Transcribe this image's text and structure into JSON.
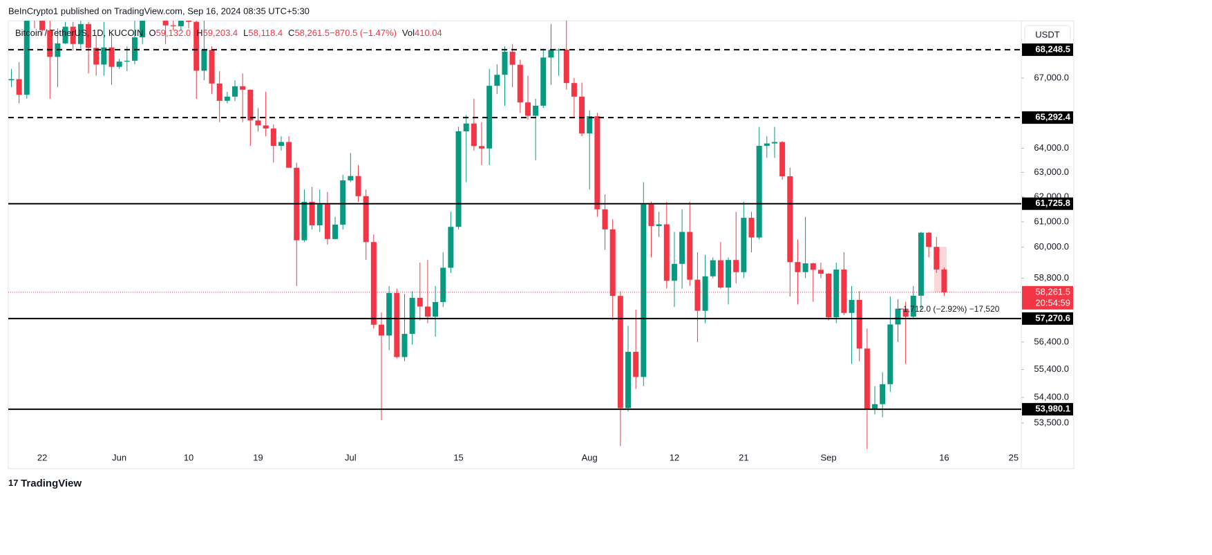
{
  "header": "BeInCrypto1 published on TradingView.com, Sep 16, 2024 08:35 UTC+5:30",
  "footer": "TradingView",
  "chart_data": {
    "type": "candlestick",
    "symbol": "Bitcoin / TetherUS, 1D, KUCOIN",
    "legend_items": [
      {
        "key": "O",
        "value": "59,132.0"
      },
      {
        "key": "H",
        "value": "59,203.4"
      },
      {
        "key": "L",
        "value": "58,118.4"
      },
      {
        "key": "C",
        "value": "58,261.5"
      },
      {
        "key": "",
        "value": "−870.5 (−1.47%)"
      },
      {
        "key": "Vol",
        "value": "410.04"
      }
    ],
    "currency": "USDT",
    "up_color": "#089981",
    "down_color": "#f23645",
    "log_scale": true,
    "categories": [
      null,
      null,
      null,
      null,
      "22",
      null,
      null,
      null,
      null,
      null,
      null,
      null,
      null,
      null,
      "Jun",
      null,
      null,
      null,
      null,
      null,
      null,
      null,
      null,
      "10",
      null,
      null,
      null,
      null,
      null,
      null,
      null,
      null,
      "19",
      null,
      null,
      null,
      null,
      null,
      null,
      null,
      null,
      null,
      null,
      null,
      "Jul",
      null,
      null,
      null,
      null,
      null,
      null,
      null,
      null,
      null,
      null,
      null,
      null,
      null,
      "15",
      null,
      null,
      null,
      null,
      null,
      null,
      null,
      null,
      null,
      null,
      null,
      null,
      null,
      null,
      null,
      null,
      "Aug",
      null,
      null,
      null,
      null,
      null,
      null,
      null,
      null,
      null,
      null,
      "12",
      null,
      null,
      null,
      null,
      null,
      null,
      null,
      null,
      "21",
      null,
      null,
      null,
      null,
      null,
      null,
      null,
      null,
      null,
      null,
      "Sep",
      null,
      null,
      null,
      null,
      null,
      null,
      null,
      null,
      null,
      null,
      null,
      null,
      null,
      null,
      "16",
      null,
      null,
      null,
      null,
      null,
      null,
      null,
      null,
      "25"
    ],
    "open": [
      66900,
      66950,
      66270,
      71440,
      70140,
      69120,
      67930,
      68530,
      69280,
      68500,
      69400,
      68330,
      67590,
      68350,
      67490,
      67720,
      67760,
      68800,
      70570,
      71080,
      70760,
      69340,
      69300,
      69650,
      69500,
      67320,
      68240,
      66760,
      66010,
      66190,
      66640,
      66490,
      65170,
      64960,
      64830,
      64100,
      64260,
      63190,
      60270,
      61800,
      60860,
      61690,
      60320,
      60890,
      62670,
      62850,
      62030,
      60200,
      57040,
      56640,
      58230,
      55850,
      56700,
      58050,
      57720,
      57340,
      57890,
      59200,
      60800,
      64710,
      65040,
      64090,
      63990,
      66660,
      67140,
      68160,
      67580,
      65940,
      65370,
      65800,
      67900,
      68240,
      68250,
      66780,
      66190,
      64620,
      65350,
      61500,
      60700,
      58120,
      54020,
      56040,
      55130,
      61690,
      60830,
      60900,
      58700,
      59350,
      60600,
      58740,
      57560,
      58870,
      59490,
      58440,
      59500,
      59030,
      61160,
      60380,
      64100,
      64200,
      64260,
      62840,
      59420,
      59030,
      59370,
      59120,
      58970,
      57320,
      59130,
      57480,
      57970,
      56160,
      53960,
      54160,
      54870,
      57050,
      57640,
      57340,
      58130,
      60570,
      60010,
      59132,
      null,
      null,
      null,
      null,
      null,
      null,
      null,
      null,
      null
    ],
    "high": [
      67400,
      67700,
      71500,
      71900,
      70600,
      70000,
      69200,
      69500,
      69500,
      70600,
      69500,
      68900,
      69500,
      69000,
      67850,
      68400,
      70200,
      71000,
      71700,
      71600,
      71900,
      69600,
      69900,
      70100,
      69600,
      69900,
      68400,
      67300,
      66400,
      66900,
      67200,
      66500,
      65700,
      66400,
      65000,
      64500,
      64500,
      63400,
      62300,
      62400,
      62300,
      62200,
      61200,
      62900,
      63800,
      63300,
      62300,
      60500,
      57500,
      58500,
      58400,
      58200,
      58300,
      59400,
      59500,
      58500,
      59800,
      61400,
      64900,
      65400,
      66100,
      65100,
      67400,
      67600,
      68400,
      68500,
      67800,
      67100,
      66100,
      68300,
      69400,
      68300,
      70000,
      67000,
      66800,
      65600,
      65500,
      62100,
      61100,
      58300,
      57000,
      57600,
      62600,
      61800,
      61400,
      61800,
      60600,
      61500,
      61800,
      59800,
      59700,
      59600,
      60200,
      59600,
      61400,
      61800,
      61400,
      64900,
      64500,
      64900,
      64300,
      63200,
      60300,
      61200,
      59400,
      59400,
      59000,
      59400,
      59800,
      58500,
      58300,
      56900,
      54800,
      55300,
      58100,
      58000,
      57900,
      58500,
      60600,
      60600,
      60400,
      59203.4,
      null,
      null,
      null,
      null,
      null,
      null,
      null,
      null,
      null
    ],
    "low": [
      66600,
      65900,
      66100,
      69200,
      68900,
      66100,
      66600,
      68500,
      68200,
      68300,
      67200,
      67100,
      67100,
      66700,
      67400,
      67300,
      67600,
      68500,
      70400,
      70100,
      68500,
      69100,
      69100,
      69200,
      66100,
      66900,
      66300,
      65100,
      65900,
      66000,
      65100,
      64100,
      64700,
      64500,
      63400,
      63900,
      63200,
      58500,
      60200,
      60700,
      60600,
      60100,
      60300,
      60700,
      62600,
      61800,
      59500,
      56900,
      53600,
      56100,
      55800,
      55700,
      56300,
      57200,
      57100,
      56600,
      57700,
      59000,
      60700,
      62600,
      63900,
      63300,
      63300,
      66300,
      65800,
      66600,
      65500,
      65200,
      63500,
      65700,
      66700,
      67100,
      66500,
      65300,
      64500,
      62300,
      61200,
      59900,
      57200,
      52700,
      53900,
      54700,
      54800,
      59600,
      60400,
      58400,
      57700,
      58400,
      58500,
      56400,
      57100,
      58800,
      58400,
      57800,
      58600,
      58800,
      59800,
      60300,
      63600,
      63600,
      62700,
      58100,
      57800,
      58800,
      57900,
      58800,
      57200,
      57100,
      57400,
      55600,
      55700,
      52600,
      53800,
      53700,
      54600,
      56400,
      55600,
      57300,
      57600,
      59600,
      59000,
      58118.4,
      null,
      null,
      null,
      null,
      null,
      null,
      null,
      null,
      null
    ],
    "close": [
      66950,
      66270,
      71440,
      70140,
      69120,
      67930,
      68530,
      69280,
      68500,
      69400,
      68330,
      67590,
      68350,
      67490,
      67720,
      67760,
      68800,
      70570,
      71080,
      70760,
      69340,
      69300,
      69650,
      69500,
      67320,
      68240,
      66760,
      66010,
      66190,
      66640,
      66490,
      65170,
      64960,
      64830,
      64100,
      64260,
      63190,
      60270,
      61800,
      60860,
      61690,
      60320,
      60890,
      62670,
      62850,
      62030,
      60200,
      57040,
      56640,
      58230,
      55850,
      56700,
      58050,
      57720,
      57340,
      57890,
      59200,
      60800,
      64710,
      65040,
      64090,
      63990,
      66660,
      67140,
      68160,
      67580,
      65940,
      65370,
      65800,
      67900,
      68240,
      68250,
      66780,
      66190,
      64620,
      65350,
      61500,
      60700,
      58120,
      54020,
      56040,
      55130,
      61690,
      60830,
      60900,
      58700,
      59350,
      60600,
      58740,
      57560,
      58870,
      59490,
      58440,
      59500,
      59030,
      61160,
      60380,
      64100,
      64200,
      64260,
      62840,
      59420,
      59030,
      59370,
      59120,
      58970,
      57320,
      59130,
      57480,
      57970,
      56160,
      53960,
      54160,
      54870,
      57050,
      57640,
      57340,
      58130,
      60570,
      60010,
      59132,
      58261.5,
      null,
      null,
      null,
      null,
      null,
      null,
      null,
      null,
      null
    ],
    "ylim": [
      51930,
      69550
    ],
    "yticks": [
      {
        "value": 53500,
        "label": "53,500.0"
      },
      {
        "value": 54400,
        "label": "54,400.0"
      },
      {
        "value": 55400,
        "label": "55,400.0"
      },
      {
        "value": 56400,
        "label": "56,400.0"
      },
      {
        "value": 58800,
        "label": "58,800.0"
      },
      {
        "value": 60000,
        "label": "60,000.0"
      },
      {
        "value": 61000,
        "label": "61,000.0"
      },
      {
        "value": 62000,
        "label": "62,000.0"
      },
      {
        "value": 63000,
        "label": "63,000.0"
      },
      {
        "value": 64000,
        "label": "64,000.0"
      },
      {
        "value": 67000,
        "label": "67,000.0"
      }
    ],
    "levels": [
      {
        "value": 68248.5,
        "label": "68,248.5",
        "dashed": true
      },
      {
        "value": 65292.4,
        "label": "65,292.4",
        "dashed": true
      },
      {
        "value": 61725.8,
        "label": "61,725.8",
        "dashed": false
      },
      {
        "value": 57270.6,
        "label": "57,270.6",
        "dashed": false
      },
      {
        "value": 53980.1,
        "label": "53,980.1",
        "dashed": false
      }
    ],
    "last_price": {
      "value": 58261.5,
      "label": "58,261.5",
      "countdown": "20:54:59"
    },
    "measure_label": "−1,712.0 (−2.92%) −17,520"
  }
}
